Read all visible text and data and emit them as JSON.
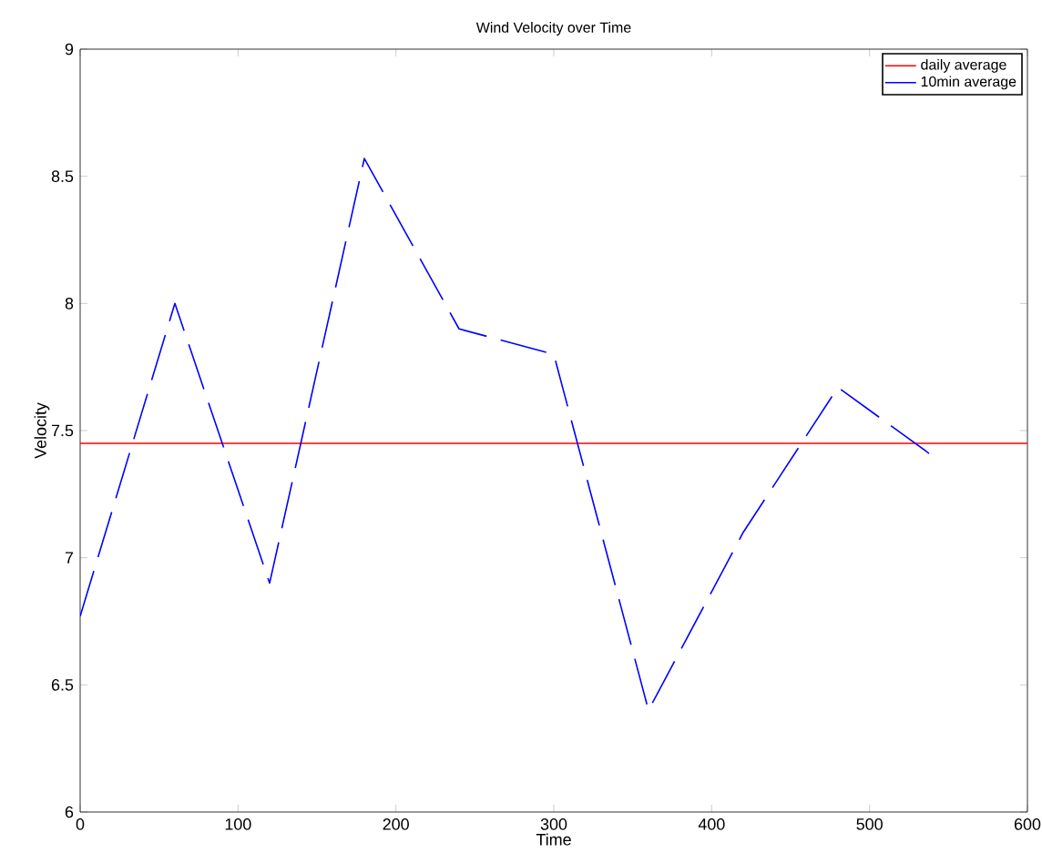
{
  "chart_data": {
    "type": "line",
    "title": "Wind Velocity over Time",
    "xlabel": "Time",
    "ylabel": "Velocity",
    "xlim": [
      0,
      600
    ],
    "xticks": [
      0,
      100,
      200,
      300,
      400,
      500,
      600
    ],
    "ylim": [
      6,
      9
    ],
    "yticks": [
      6,
      6.5,
      7,
      7.5,
      8,
      8.5,
      9
    ],
    "legend": "top right",
    "grid": false,
    "series": [
      {
        "name": "daily average",
        "color": "#ff0000",
        "x": [
          0,
          600
        ],
        "values": [
          7.45,
          7.45
        ],
        "line_style": "solid"
      },
      {
        "name": "10min average",
        "color": "#0000ff",
        "x": [
          0,
          60,
          120,
          180,
          240,
          300,
          360,
          420,
          480,
          540
        ],
        "values": [
          6.77,
          8.0,
          6.9,
          8.57,
          7.9,
          7.8,
          6.4,
          7.1,
          7.67,
          7.4
        ],
        "line_style": "dashed"
      }
    ]
  }
}
